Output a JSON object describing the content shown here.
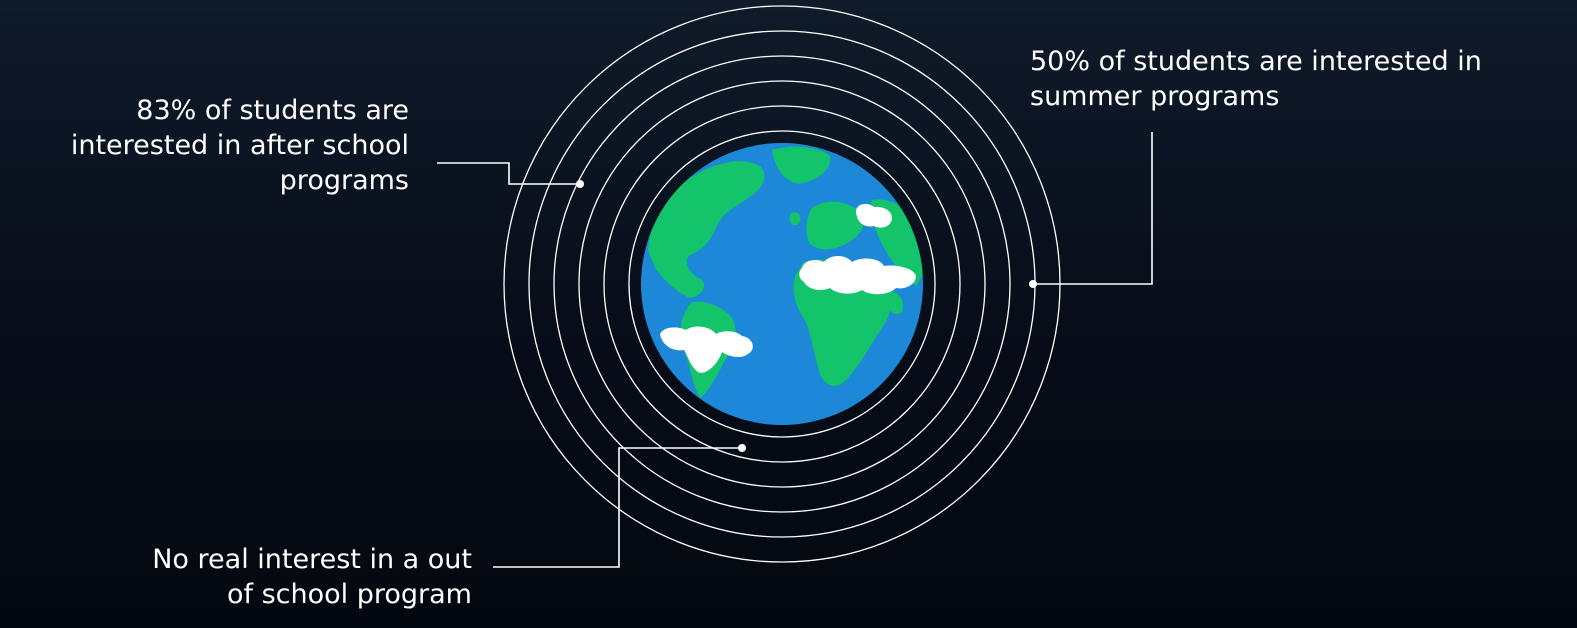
{
  "callouts": {
    "after_school": "83% of students are\ninterested in after school\nprograms",
    "summer": "50% of students are interested in\nsummer programs",
    "no_interest": "No real interest in a out\nof school program"
  },
  "colors": {
    "background_top": "#0f1a2a",
    "background_bottom": "#030810",
    "ring_stroke": "#ffffff",
    "ocean": "#1e88d8",
    "land": "#13c46a",
    "cloud": "#ffffff"
  },
  "icons": {
    "center": "globe-icon",
    "clouds": "cloud-icon"
  }
}
